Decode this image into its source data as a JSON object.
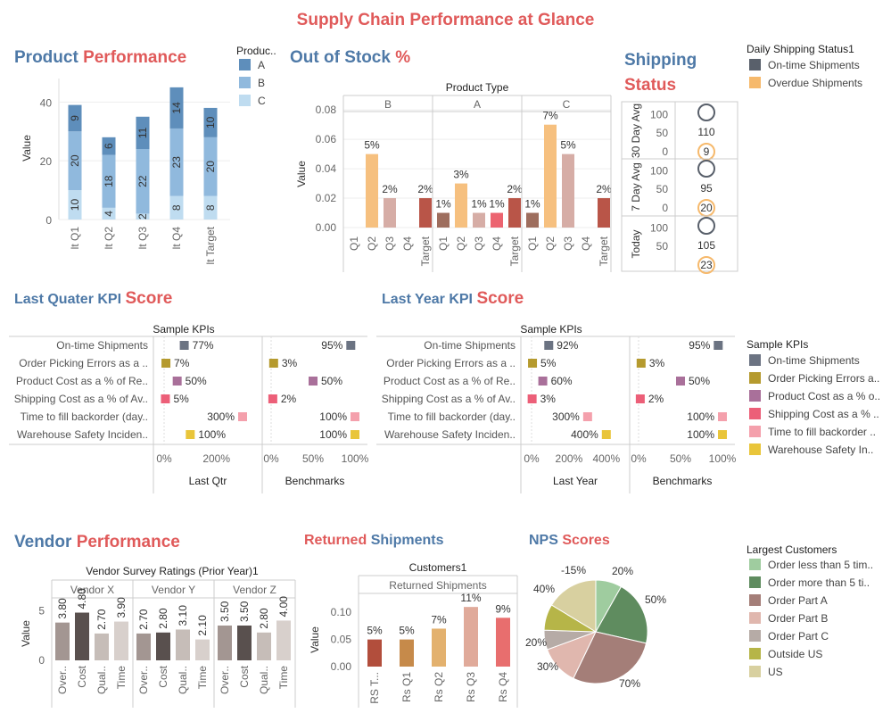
{
  "title": "Supply Chain Performance at Glance",
  "product_perf": {
    "t1": "Product",
    "t2": "Performance",
    "legend_title": "Produc..",
    "legend": [
      "A",
      "B",
      "C"
    ],
    "colors": [
      "#5e8ebb",
      "#90b9dd",
      "#bfdcf0"
    ],
    "ylabel": "Value",
    "yticks": [
      "0",
      "20",
      "40"
    ]
  },
  "out_of_stock": {
    "t1": "Out of Stock",
    "t2": "%",
    "header": "Product Type",
    "groups": [
      "B",
      "A",
      "C"
    ],
    "ylabel": "Value",
    "yticks": [
      "0.00",
      "0.02",
      "0.04",
      "0.06",
      "0.08"
    ]
  },
  "shipping": {
    "t1": "Shipping",
    "t2": "Status",
    "legend_title": "Daily Shipping Status1",
    "legend": [
      "On-time Shipments",
      "Overdue Shipments"
    ],
    "colors": [
      "#59606b",
      "#f6b96c"
    ],
    "rows": [
      "30 Day Avg",
      "7 Day Avg",
      "Today"
    ]
  },
  "lq": {
    "t1": "Last Quater KPI",
    "t2": "Score",
    "header": "Sample KPIs",
    "col1": "Last Qtr",
    "col2": "Benchmarks"
  },
  "ly": {
    "t1": "Last Year KPI",
    "t2": "Score",
    "header": "Sample KPIs",
    "col1": "Last Year",
    "col2": "Benchmarks"
  },
  "kpi_labels": [
    "On-time Shipments",
    "Order Picking Errors as a ..",
    "Product Cost as a % of Re..",
    "Shipping Cost as a % of Av..",
    "Time to fill backorder (day..",
    "Warehouse Safety Inciden.."
  ],
  "kpi_legend_title": "Sample KPIs",
  "kpi_legend": [
    "On-time Shipments",
    "Order Picking Errors a..",
    "Product Cost as a % o..",
    "Shipping Cost as a % ..",
    "Time to fill backorder ..",
    "Warehouse Safety In.."
  ],
  "kpi_colors": [
    "#6b7382",
    "#b59a2e",
    "#a9709a",
    "#ec5f78",
    "#f4a0ac",
    "#e9c53a"
  ],
  "vendor": {
    "t1": "Vendor",
    "t2": "Performance",
    "header": "Vendor Survey Ratings (Prior Year)1",
    "ylabel": "Value",
    "yticks": [
      "0",
      "5"
    ]
  },
  "returned": {
    "t1": "Returned",
    "t2": "Shipments",
    "header": "Customers1",
    "sub": "Returned Shipments",
    "ylabel": "Value",
    "yticks": [
      "0.00",
      "0.05",
      "0.10"
    ]
  },
  "nps": {
    "t1": "NPS",
    "t2": "Scores"
  },
  "customers": {
    "legend_title": "Largest Customers",
    "legend": [
      "Order less than 5 tim..",
      "Order more than 5 ti..",
      "Order Part A",
      "Order Part B",
      "Order Part C",
      "Outside US",
      "US"
    ],
    "colors": [
      "#9fcc9f",
      "#5f8c5f",
      "#a47e78",
      "#e0b7ae",
      "#b6aba6",
      "#b6b548",
      "#d8d0a0"
    ]
  },
  "chart_data": [
    {
      "type": "bar",
      "title": "Product Performance",
      "categories": [
        "lt Q1",
        "lt Q2",
        "lt Q3",
        "lt Q4",
        "lt Target"
      ],
      "series": [
        {
          "name": "C",
          "values": [
            10,
            4,
            2,
            8,
            8
          ]
        },
        {
          "name": "B",
          "values": [
            20,
            18,
            22,
            23,
            20
          ]
        },
        {
          "name": "A",
          "values": [
            9,
            6,
            11,
            14,
            10
          ]
        }
      ],
      "ylabel": "Value",
      "ylim": [
        0,
        48
      ]
    },
    {
      "type": "bar",
      "title": "Out of Stock %",
      "groups": [
        "B",
        "A",
        "C"
      ],
      "categories": [
        "Q1",
        "Q2",
        "Q3",
        "Q4",
        "Target"
      ],
      "values": {
        "B": [
          null,
          0.05,
          0.02,
          null,
          0.02
        ],
        "A": [
          0.01,
          0.03,
          0.01,
          0.01,
          0.02
        ],
        "C": [
          0.01,
          0.07,
          0.05,
          null,
          0.02
        ]
      },
      "labels": {
        "B": [
          "",
          "5%",
          "2%",
          "",
          "2%"
        ],
        "A": [
          "1%",
          "3%",
          "1%",
          "1%",
          "2%"
        ],
        "C": [
          "1%",
          "7%",
          "5%",
          "",
          "2%"
        ]
      },
      "ylabel": "Value",
      "ylim": [
        0,
        0.085
      ]
    },
    {
      "type": "scatter",
      "title": "Shipping Status",
      "rows": [
        "30 Day Avg",
        "7 Day Avg",
        "Today"
      ],
      "on_time": [
        110,
        95,
        105
      ],
      "overdue": [
        9,
        20,
        23
      ]
    },
    {
      "type": "scatter",
      "title": "Last Quater KPI Score",
      "kpis": [
        "On-time Shipments",
        "Order Picking Errors",
        "Product Cost",
        "Shipping Cost",
        "Time to fill backorder",
        "Warehouse Safety Incidents"
      ],
      "last": [
        77,
        7,
        50,
        5,
        300,
        100
      ],
      "last_labels": [
        "77%",
        "7%",
        "50%",
        "5%",
        "300%",
        "100%"
      ],
      "bench": [
        95,
        3,
        50,
        2,
        100,
        100
      ],
      "bench_labels": [
        "95%",
        "3%",
        "50%",
        "2%",
        "100%",
        "100%"
      ],
      "last_ticks": [
        "0%",
        "200%"
      ],
      "bench_ticks": [
        "0%",
        "50%",
        "100%"
      ]
    },
    {
      "type": "scatter",
      "title": "Last Year KPI Score",
      "kpis": [
        "On-time Shipments",
        "Order Picking Errors",
        "Product Cost",
        "Shipping Cost",
        "Time to fill backorder",
        "Warehouse Safety Incidents"
      ],
      "last": [
        92,
        5,
        60,
        3,
        300,
        400
      ],
      "last_labels": [
        "92%",
        "5%",
        "60%",
        "3%",
        "300%",
        "400%"
      ],
      "bench": [
        95,
        3,
        50,
        2,
        100,
        100
      ],
      "bench_labels": [
        "95%",
        "3%",
        "50%",
        "2%",
        "100%",
        "100%"
      ],
      "last_ticks": [
        "0%",
        "200%",
        "400%"
      ],
      "bench_ticks": [
        "0%",
        "50%",
        "100%"
      ]
    },
    {
      "type": "bar",
      "title": "Vendor Survey Ratings (Prior Year)1",
      "groups": [
        "Vendor X",
        "Vendor Y",
        "Vendor Z"
      ],
      "categories": [
        "Over..",
        "Cost",
        "Qual..",
        "Time"
      ],
      "values": {
        "Vendor X": [
          3.8,
          4.8,
          2.7,
          3.9
        ],
        "Vendor Y": [
          2.7,
          2.8,
          3.1,
          2.1
        ],
        "Vendor Z": [
          3.5,
          3.5,
          2.8,
          4.0
        ]
      },
      "labels": {
        "Vendor X": [
          "3.80",
          "4.80",
          "2.70",
          "3.90"
        ],
        "Vendor Y": [
          "2.70",
          "2.80",
          "3.10",
          "2.10"
        ],
        "Vendor Z": [
          "3.50",
          "3.50",
          "2.80",
          "4.00"
        ]
      },
      "ylim": [
        0,
        7
      ]
    },
    {
      "type": "bar",
      "title": "Returned Shipments",
      "categories": [
        "RS T...",
        "Rs Q1",
        "Rs Q2",
        "Rs Q3",
        "Rs Q4"
      ],
      "values": [
        0.05,
        0.05,
        0.07,
        0.11,
        0.09
      ],
      "labels": [
        "5%",
        "5%",
        "7%",
        "11%",
        "9%"
      ],
      "ylim": [
        0,
        0.13
      ]
    },
    {
      "type": "pie",
      "title": "NPS Scores",
      "labels": [
        "Order less than 5 tim..",
        "Order more than 5 ti..",
        "Order Part A",
        "Order Part B",
        "Order Part C",
        "Outside US",
        "US"
      ],
      "values": [
        20,
        50,
        70,
        30,
        -15,
        20,
        40
      ],
      "slice_labels": [
        "20%",
        "50%",
        "70%",
        "30%",
        "-15%",
        "20%",
        "40%"
      ]
    }
  ]
}
